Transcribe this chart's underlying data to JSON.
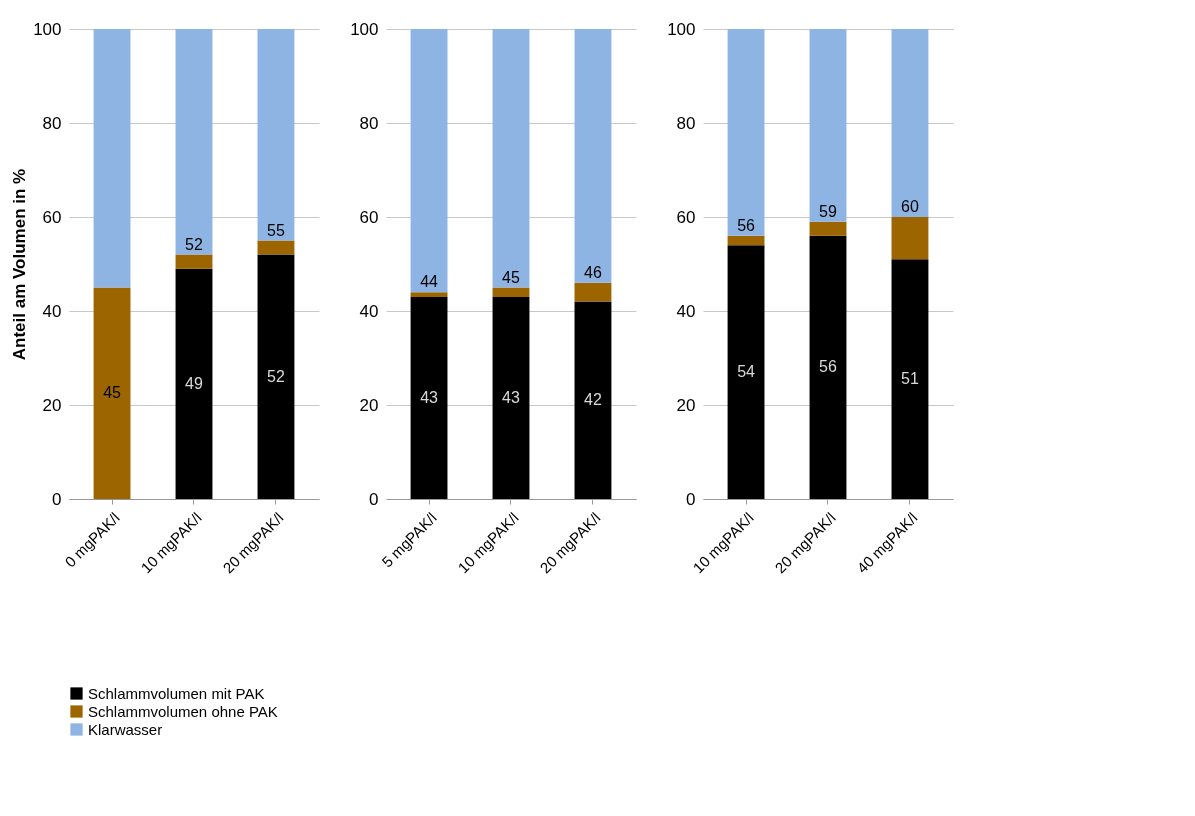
{
  "chart_data": [
    {
      "type": "bar",
      "stacked": true,
      "ylabel": "Anteil am Volumen in %",
      "categories": [
        "0 mgPAK/l",
        "10 mgPAK/l",
        "20 mgPAK/l"
      ],
      "ylim": [
        0,
        100
      ],
      "yticks": [
        0,
        20,
        40,
        60,
        80,
        100
      ],
      "grid": "y",
      "legend": "bottom",
      "series": [
        {
          "name": "Schlammvolumen mit PAK",
          "color": "#000000",
          "values": [
            null,
            49,
            52
          ],
          "value_labels": [
            null,
            "49",
            "52"
          ]
        },
        {
          "name": "Schlammvolumen ohne PAK",
          "color": "#9c6500",
          "values": [
            45,
            3,
            3
          ],
          "value_labels": [
            "45",
            null,
            null
          ]
        },
        {
          "name": "Klarwasser",
          "color": "#8eb4e3",
          "values": [
            55,
            48,
            45
          ]
        }
      ],
      "annotations": [
        {
          "text": "52",
          "x": "10 mgPAK/l",
          "y": 52
        },
        {
          "text": "55",
          "x": "20 mgPAK/l",
          "y": 55
        }
      ]
    },
    {
      "type": "bar",
      "stacked": true,
      "categories": [
        "5 mgPAK/l",
        "10 mgPAK/l",
        "20 mgPAK/l"
      ],
      "ylim": [
        0,
        100
      ],
      "yticks": [
        0,
        20,
        40,
        60,
        80,
        100
      ],
      "grid": "y",
      "series": [
        {
          "color": "#000000",
          "values": [
            43,
            43,
            42
          ],
          "value_labels": [
            "43",
            "43",
            "42"
          ]
        },
        {
          "color": "#9c6500",
          "values": [
            1,
            2,
            4
          ]
        },
        {
          "color": "#8eb4e3",
          "values": [
            56,
            55,
            54
          ]
        }
      ],
      "annotations": [
        {
          "text": "44",
          "x": "5 mgPAK/l",
          "y": 44
        },
        {
          "text": "45",
          "x": "10 mgPAK/l",
          "y": 45
        },
        {
          "text": "46",
          "x": "20 mgPAK/l",
          "y": 46
        }
      ]
    },
    {
      "type": "bar",
      "stacked": true,
      "categories": [
        "10 mgPAK/l",
        "20 mgPAK/l",
        "40 mgPAK/l"
      ],
      "ylim": [
        0,
        100
      ],
      "yticks": [
        0,
        20,
        40,
        60,
        80,
        100
      ],
      "grid": "y",
      "series": [
        {
          "color": "#000000",
          "values": [
            54,
            56,
            51
          ],
          "value_labels": [
            "54",
            "56",
            "51"
          ]
        },
        {
          "color": "#9c6500",
          "values": [
            2,
            3,
            9
          ]
        },
        {
          "color": "#8eb4e3",
          "values": [
            44,
            41,
            40
          ]
        }
      ],
      "annotations": [
        {
          "text": "56",
          "x": "10 mgPAK/l",
          "y": 56
        },
        {
          "text": "59",
          "x": "20 mgPAK/l",
          "y": 59
        },
        {
          "text": "60",
          "x": "40 mgPAK/l",
          "y": 60
        }
      ]
    }
  ]
}
